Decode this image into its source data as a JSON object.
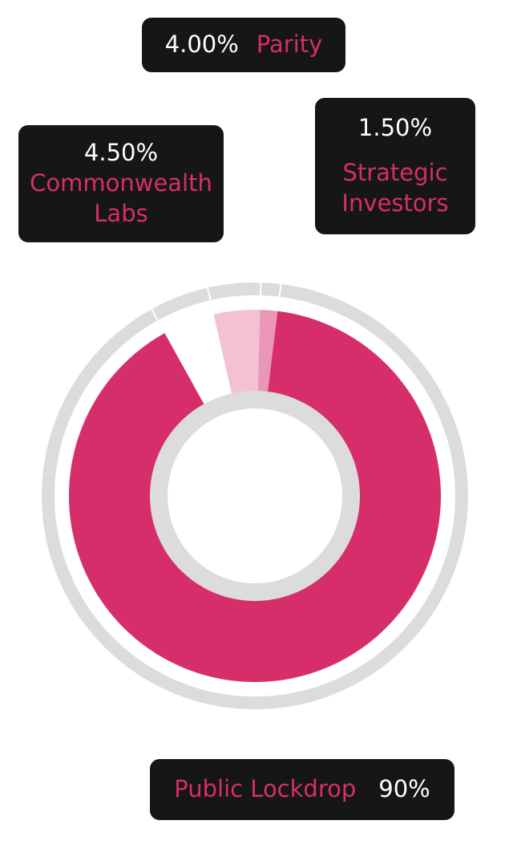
{
  "chart_data": {
    "type": "pie",
    "style": "donut",
    "slices": [
      {
        "label": "Public Lockdrop",
        "value": 90,
        "value_label": "90%",
        "color": "#d62e6b"
      },
      {
        "label": "Commonwealth Labs",
        "value": 4.5,
        "value_label": "4.50%",
        "color": "#ffffff"
      },
      {
        "label": "Parity",
        "value": 4.0,
        "value_label": "4.00%",
        "color": "#f3c0d4"
      },
      {
        "label": "Strategic Investors",
        "value": 1.5,
        "value_label": "1.50%",
        "color": "#ea96b7"
      }
    ],
    "outer_ring_color": "#dcdcdc",
    "inner_ring_color": "#dcdcdc"
  },
  "labels": {
    "parity": {
      "pct": "4.00%",
      "name": "Parity"
    },
    "commonwealth": {
      "pct": "4.50%",
      "name": "Commonwealth Labs"
    },
    "strategic": {
      "pct": "1.50%",
      "name": "Strategic Investors"
    },
    "lockdrop": {
      "pct": "90%",
      "name": "Public Lockdrop"
    }
  }
}
